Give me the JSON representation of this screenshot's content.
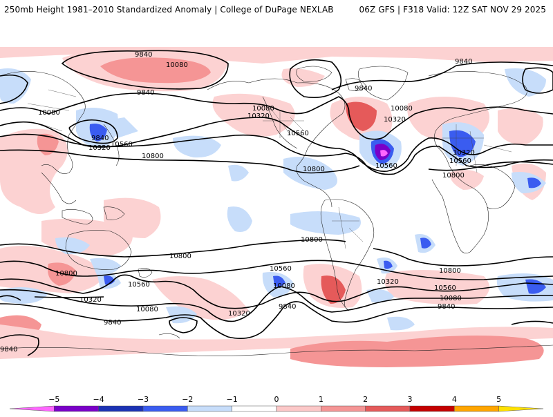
{
  "header": {
    "title": "250mb Height 1981–2010 Standardized Anomaly | College of DuPage NEXLAB",
    "run_info": "06Z GFS | F318 Valid: 12Z SAT NOV 29 2025"
  },
  "contour_labels": {
    "c9840_a": "9840",
    "c10080_a": "10080",
    "c9840_b": "9840",
    "c9840_c": "9840",
    "c10080_b": "10080",
    "c9840_d": "9840",
    "c10080_c": "10080",
    "c10320_a": "10320",
    "c10080_d": "10080",
    "c10320_b": "10320",
    "c10080_e": "10080",
    "c10560_a": "10560",
    "c10560_b": "10560",
    "c10800_a": "10800",
    "c10800_b": "10800",
    "c10560_c": "10560",
    "c10320_c": "10320",
    "c10320_d": "10320",
    "c10560_d": "10560",
    "c10800_c": "10800",
    "c10800_d": "10800",
    "c10800_e": "10800",
    "c10800_f": "10800",
    "c10560_e": "10560",
    "c10320_e": "10320",
    "c10080_f": "10080",
    "c9840_e": "9840",
    "c10560_f": "10560",
    "c10080_g": "10080",
    "c10320_f": "10320",
    "c9840_f": "9840",
    "c10320_g": "10320",
    "c10560_g": "10560",
    "c10080_h": "10080",
    "c9840_g": "9840",
    "c9840_h": "9840"
  },
  "legend": {
    "ticks": [
      "−5",
      "−4",
      "−3",
      "−2",
      "−1",
      "0",
      "1",
      "2",
      "3",
      "4",
      "5"
    ],
    "colors": [
      "#ff66ff",
      "#7a00c8",
      "#1b32b4",
      "#3a5cf0",
      "#c7ddfa",
      "#ffffff",
      "#fcc8c8",
      "#f59595",
      "#e55a5a",
      "#c40000",
      "#ffa500",
      "#ffe100"
    ]
  },
  "colors": {
    "anom_pos1": "#fcd2d2",
    "anom_pos2": "#f59595",
    "anom_pos3": "#e55a5a",
    "anom_neg1": "#c7ddfa",
    "anom_neg2": "#7c9cf2",
    "anom_neg3": "#2d4fdc",
    "anom_neg4": "#7a00c8",
    "anom_neg5": "#ff66ff"
  }
}
